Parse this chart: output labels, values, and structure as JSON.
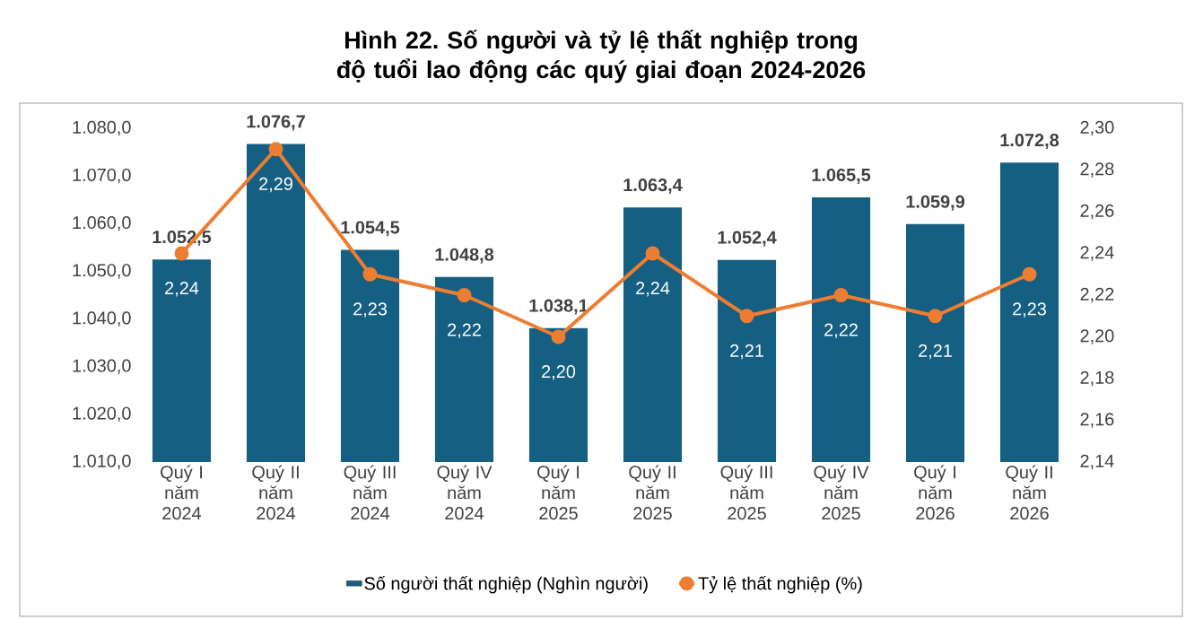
{
  "chart_data": {
    "type": "bar",
    "title": "Hình 22. Số người và tỷ lệ thất nghiệp trong độ tuổi lao động các quý giai đoạn 2024-2026",
    "categories": [
      "Quý I năm 2024",
      "Quý II năm 2024",
      "Quý III năm 2024",
      "Quý IV năm 2024",
      "Quý I năm 2025",
      "Quý II năm 2025",
      "Quý III năm 2025",
      "Quý IV năm 2025",
      "Quý I năm 2026",
      "Quý II năm 2026"
    ],
    "series": [
      {
        "name": "Số người thất nghiệp (Nghìn người)",
        "color": "#155f82",
        "values": [
          1052.5,
          1076.7,
          1054.5,
          1048.8,
          1038.1,
          1063.4,
          1052.4,
          1065.5,
          1059.9,
          1072.8
        ],
        "value_labels": [
          "1.052,5",
          "1.076,7",
          "1.054,5",
          "1.048,8",
          "1.038,1",
          "1.063,4",
          "1.052,4",
          "1.065,5",
          "1.059,9",
          "1.072,8"
        ]
      },
      {
        "name": "Tỷ lệ thất nghiệp (%)",
        "type": "line",
        "axis": "y2",
        "color": "#ed7d31",
        "values": [
          2.24,
          2.29,
          2.23,
          2.22,
          2.2,
          2.24,
          2.21,
          2.22,
          2.21,
          2.23
        ],
        "value_labels": [
          "2,24",
          "2,29",
          "2,23",
          "2,22",
          "2,20",
          "2,24",
          "2,21",
          "2,22",
          "2,21",
          "2,23"
        ]
      }
    ],
    "ylim": [
      1010,
      1080
    ],
    "yticks": [
      {
        "value": 1010,
        "label": "1.010,0"
      },
      {
        "value": 1020,
        "label": "1.020,0"
      },
      {
        "value": 1030,
        "label": "1.030,0"
      },
      {
        "value": 1040,
        "label": "1.040,0"
      },
      {
        "value": 1050,
        "label": "1.050,0"
      },
      {
        "value": 1060,
        "label": "1.060,0"
      },
      {
        "value": 1070,
        "label": "1.070,0"
      },
      {
        "value": 1080,
        "label": "1.080,0"
      }
    ],
    "y2lim": [
      2.14,
      2.3
    ],
    "y2ticks": [
      {
        "value": 2.14,
        "label": "2,14"
      },
      {
        "value": 2.16,
        "label": "2,16"
      },
      {
        "value": 2.18,
        "label": "2,18"
      },
      {
        "value": 2.2,
        "label": "2,20"
      },
      {
        "value": 2.22,
        "label": "2,22"
      },
      {
        "value": 2.24,
        "label": "2,24"
      },
      {
        "value": 2.26,
        "label": "2,26"
      },
      {
        "value": 2.28,
        "label": "2,28"
      },
      {
        "value": 2.3,
        "label": "2,30"
      }
    ],
    "legend": "bottom",
    "marker": "circle",
    "line_style": "solid"
  }
}
